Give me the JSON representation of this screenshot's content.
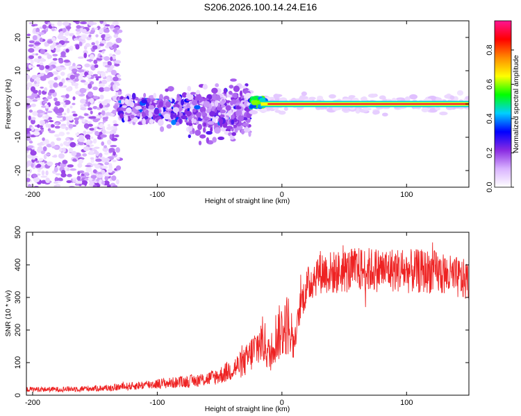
{
  "title": "S206.2026.100.14.24.E16",
  "chart_data": [
    {
      "type": "heatmap",
      "xlabel": "Height of straight line (km)",
      "ylabel": "Frequency (Hz)",
      "xlim": [
        -205,
        150
      ],
      "ylim": [
        -25,
        25
      ],
      "x_ticks": [
        -200,
        -100,
        0,
        100
      ],
      "y_ticks": [
        -20,
        -10,
        0,
        10,
        20
      ],
      "colorbar": {
        "label": "Normalized spectral amplitude",
        "range": [
          0,
          0.97
        ],
        "ticks": [
          0,
          0.2,
          0.4,
          0.6,
          0.8
        ],
        "tick_labels": [
          "0.0",
          "0.2",
          "0.4",
          "0.6",
          "0.8"
        ],
        "colormap": [
          "#ffffff",
          "#d9b3ff",
          "#8a2be2",
          "#0000ff",
          "#00cfff",
          "#00ff00",
          "#ffff00",
          "#ff8c00",
          "#ff0000",
          "#ff1493"
        ]
      },
      "features": [
        {
          "description": "scattered noise",
          "x_range": [
            -205,
            -130
          ],
          "y_range": [
            -25,
            25
          ],
          "amplitude": 0.1
        },
        {
          "description": "band",
          "x_range": [
            -130,
            -75
          ],
          "y_range": [
            -7,
            4
          ],
          "amplitude": 0.25
        },
        {
          "description": "band",
          "x_range": [
            -75,
            -25
          ],
          "y_range": [
            -12,
            8
          ],
          "amplitude": 0.25
        },
        {
          "description": "line",
          "x_range": [
            -25,
            150
          ],
          "y_range": [
            -1,
            1
          ],
          "amplitude": 0.9
        }
      ]
    },
    {
      "type": "line",
      "xlabel": "Height of straight line (km)",
      "ylabel": "SNR (10 * v/v)",
      "xlim": [
        -205,
        150
      ],
      "ylim": [
        0,
        500
      ],
      "x_ticks": [
        -200,
        -100,
        0,
        100
      ],
      "y_ticks": [
        0,
        100,
        200,
        300,
        400,
        500
      ],
      "color": "#ee2222",
      "series": [
        {
          "x": [
            -205,
            -180,
            -160,
            -140,
            -120,
            -100,
            -80,
            -60,
            -50,
            -40,
            -30,
            -20,
            -15,
            -10,
            -5,
            0,
            5,
            10,
            15,
            20,
            25,
            30,
            40,
            50,
            60,
            70,
            80,
            90,
            100,
            110,
            120,
            130,
            140,
            150
          ],
          "y": [
            18,
            18,
            20,
            22,
            28,
            35,
            40,
            50,
            60,
            80,
            100,
            150,
            170,
            120,
            180,
            200,
            220,
            160,
            280,
            330,
            360,
            380,
            375,
            380,
            385,
            385,
            385,
            385,
            380,
            380,
            380,
            370,
            360,
            350
          ]
        }
      ]
    }
  ]
}
